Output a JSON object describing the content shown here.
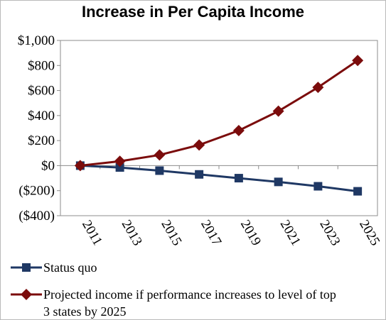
{
  "chart_data": {
    "type": "line",
    "title": "Increase in Per Capita Income",
    "xlabel": "",
    "ylabel": "",
    "x": [
      "2011",
      "2013",
      "2015",
      "2017",
      "2019",
      "2021",
      "2023",
      "2025"
    ],
    "y_ticks": [
      "$1,000",
      "$800",
      "$600",
      "$400",
      "$200",
      "$0",
      "($200)",
      "($400)"
    ],
    "y_tick_values": [
      1000,
      800,
      600,
      400,
      200,
      0,
      -200,
      -400
    ],
    "ylim": [
      -400,
      1000
    ],
    "grid": false,
    "legend_position": "bottom",
    "series": [
      {
        "name": "Status quo",
        "values": [
          0,
          -15,
          -40,
          -70,
          -100,
          -130,
          -165,
          -205
        ],
        "color": "#1f3864",
        "marker": "square"
      },
      {
        "name": "Projected income if performance increases to level of top 3 states by 2025",
        "legend_lines": [
          "Projected income if performance increases to level of top",
          "3 states by 2025"
        ],
        "values": [
          0,
          35,
          85,
          165,
          280,
          435,
          625,
          840
        ],
        "color": "#7b0c0c",
        "marker": "diamond"
      }
    ]
  }
}
